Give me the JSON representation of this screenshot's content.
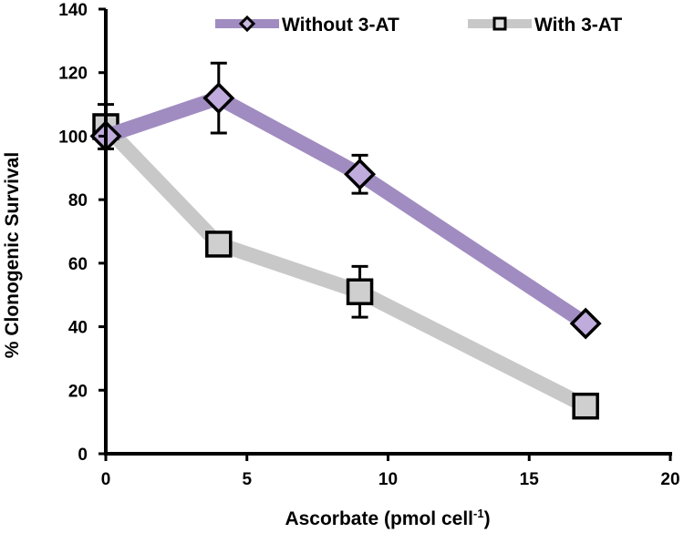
{
  "chart_data": {
    "type": "line",
    "xlabel": "Ascorbate (pmol cell",
    "xlabel_superscript": "-1",
    "xlabel_suffix": ")",
    "ylabel": "% Clonogenic Survival",
    "xlim": [
      0,
      20
    ],
    "ylim": [
      0,
      140
    ],
    "xticks": [
      0,
      5,
      10,
      15,
      20
    ],
    "yticks": [
      0,
      20,
      40,
      60,
      80,
      100,
      120,
      140
    ],
    "grid": false,
    "legend_position": "top",
    "series": [
      {
        "name": "Without 3-AT",
        "color": "#a08cc0",
        "marker": "diamond",
        "x": [
          0,
          4,
          9,
          17
        ],
        "y": [
          100,
          112,
          88,
          41
        ],
        "err": [
          0,
          11,
          6,
          0
        ]
      },
      {
        "name": "With 3-AT",
        "color": "#c8c8c8",
        "marker": "square",
        "x": [
          0,
          4,
          9,
          17
        ],
        "y": [
          103,
          66,
          51,
          15
        ],
        "err": [
          7,
          0,
          8,
          0
        ]
      }
    ]
  }
}
